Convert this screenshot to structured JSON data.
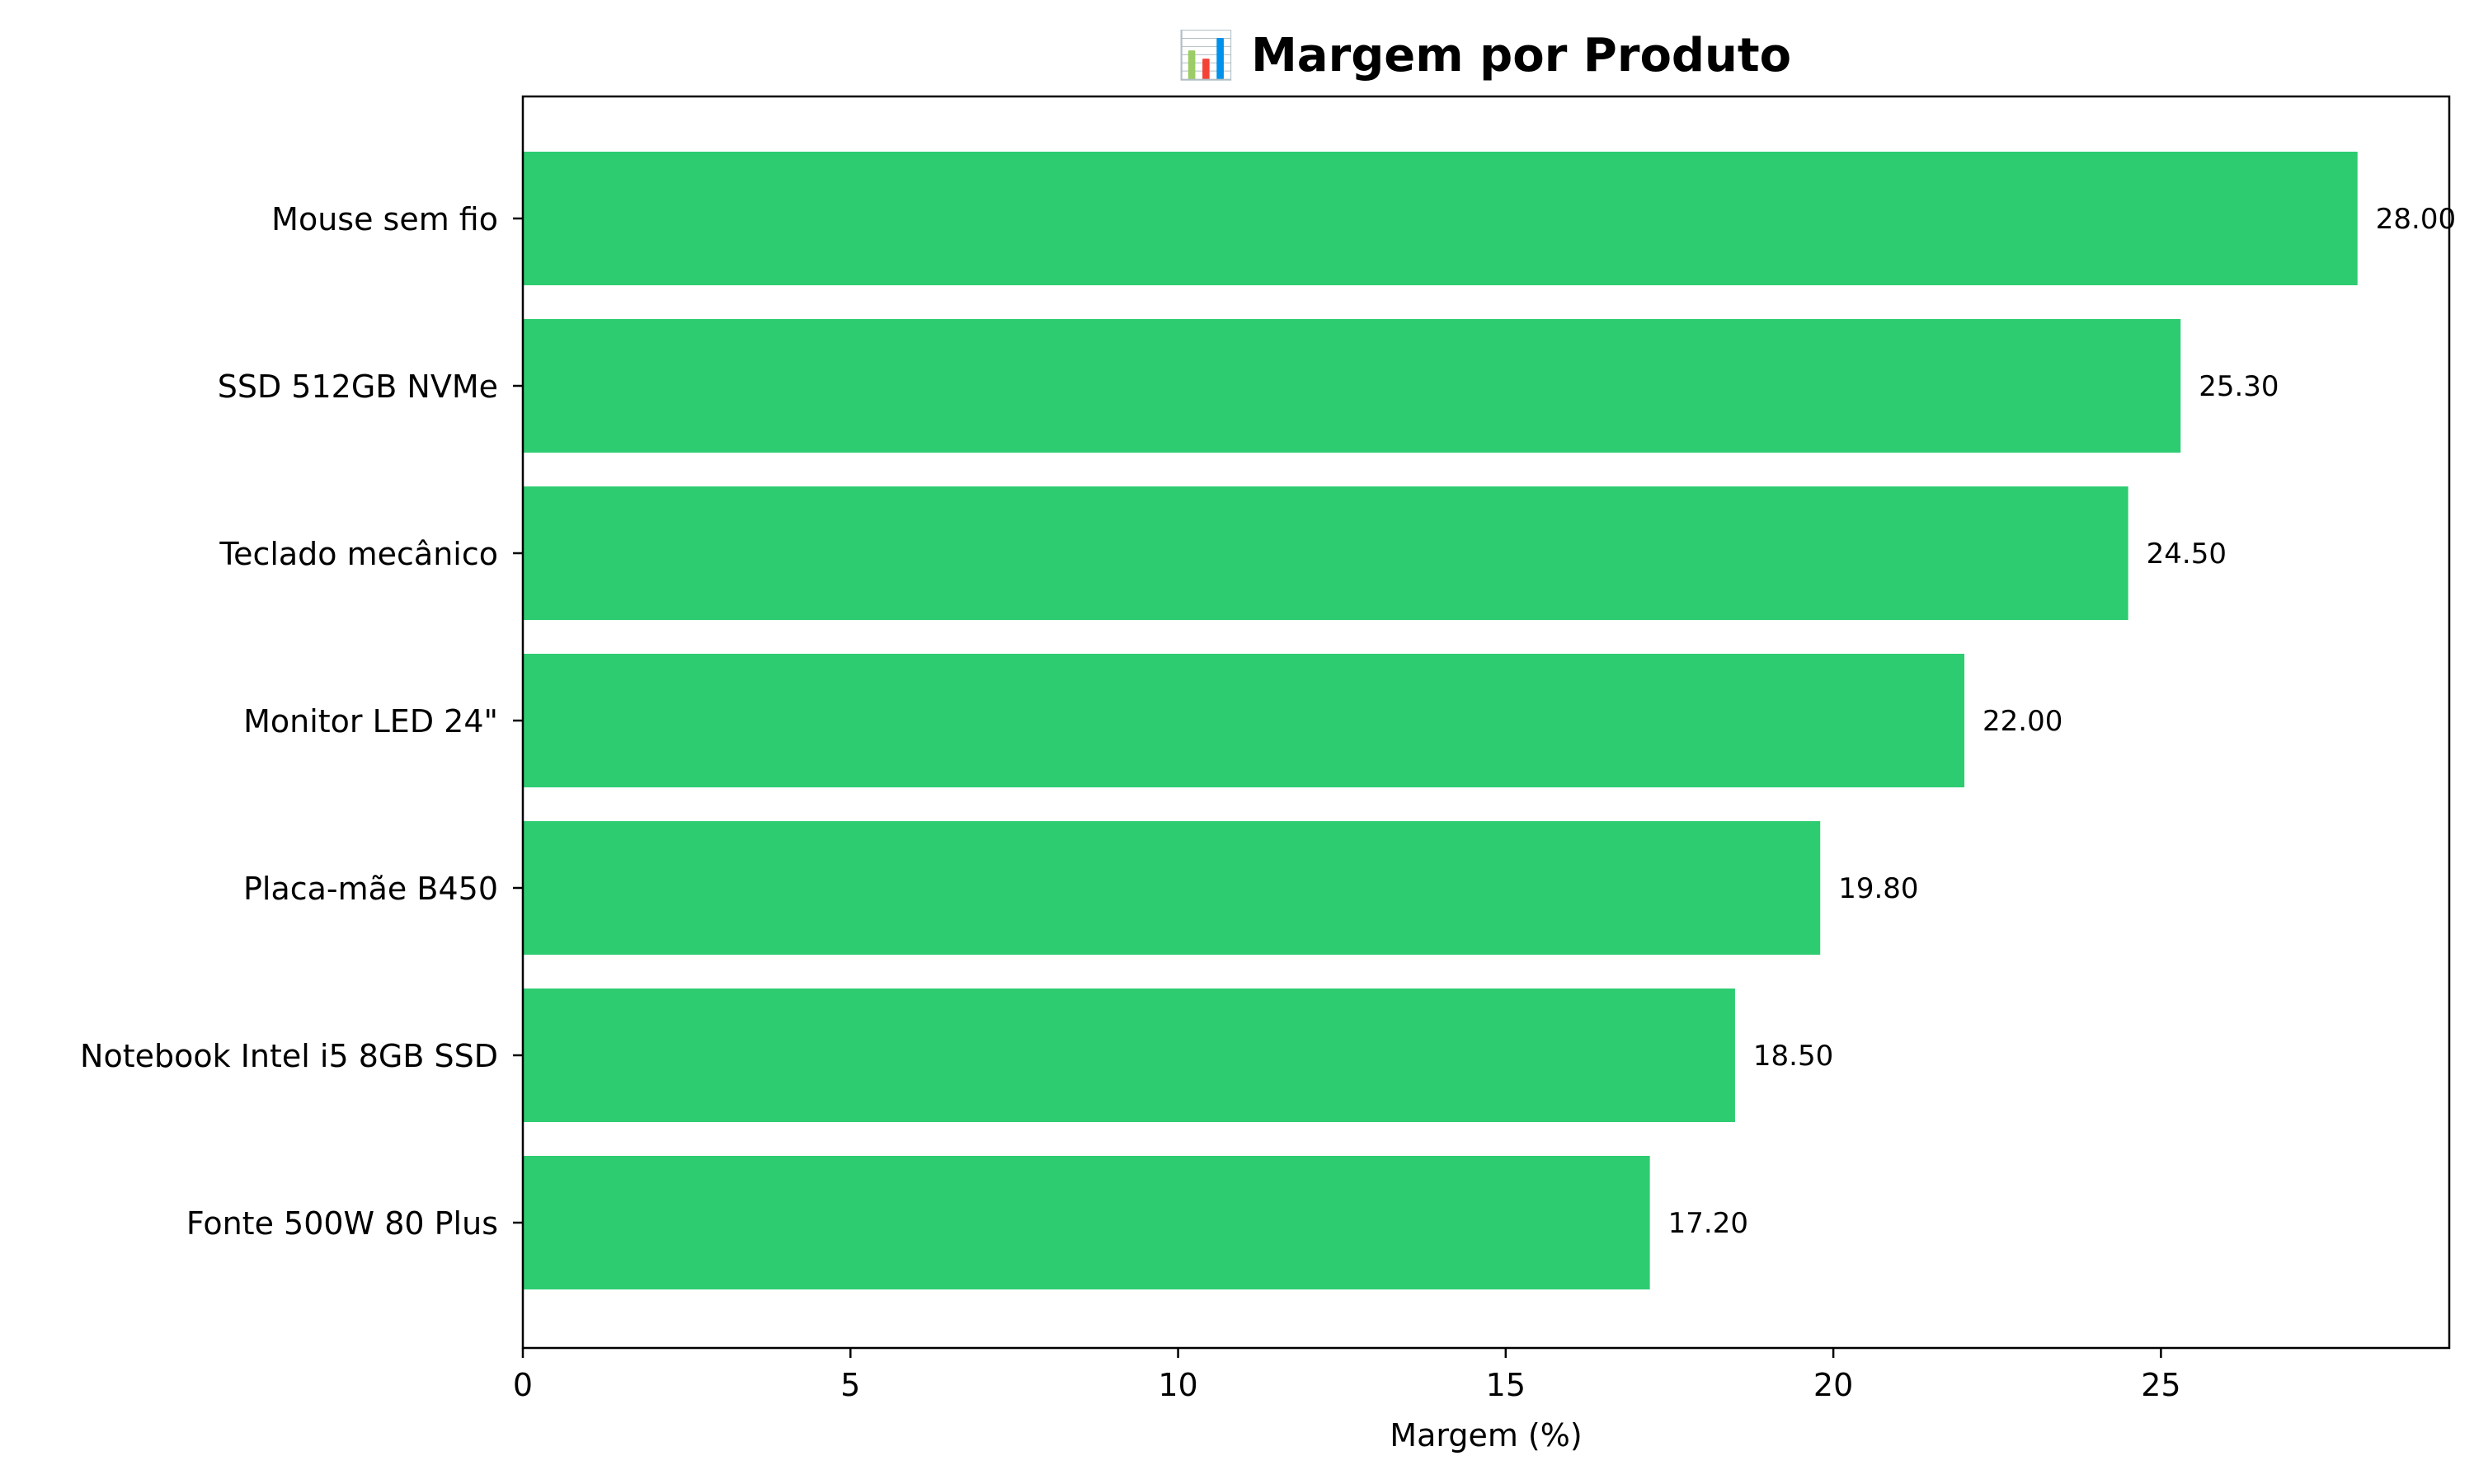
{
  "chart_data": {
    "type": "bar",
    "orientation": "horizontal",
    "title": "📊 Margem por Produto",
    "xlabel": "Margem (%)",
    "ylabel": "",
    "categories": [
      "Mouse sem fio",
      "SSD 512GB NVMe",
      "Teclado mecânico",
      "Monitor LED 24\"",
      "Placa-mãe B450",
      "Notebook Intel i5 8GB SSD",
      "Fonte 500W 80 Plus"
    ],
    "values": [
      28.0,
      25.3,
      24.5,
      22.0,
      19.8,
      18.5,
      17.2
    ],
    "data_labels": [
      "28.00",
      "25.30",
      "24.50",
      "22.00",
      "19.80",
      "18.50",
      "17.20"
    ],
    "xlim": [
      0,
      29.4
    ],
    "xticks": [
      0,
      5,
      10,
      15,
      20,
      25
    ],
    "xtick_labels": [
      "0",
      "5",
      "10",
      "15",
      "20",
      "25"
    ],
    "grid": false,
    "bar_color": "#2ecc71"
  }
}
